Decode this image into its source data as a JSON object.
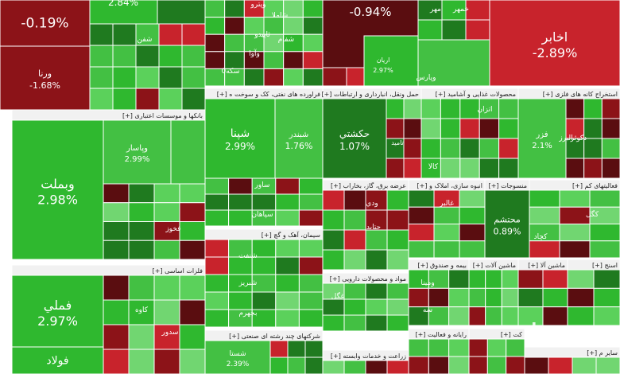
{
  "chart_data": {
    "type": "treemap",
    "colors": {
      "strong_green": "#2fb82f",
      "green": "#43c043",
      "light_green": "#5bd15b",
      "pale_green": "#71d671",
      "dark_green": "#1f7a1f",
      "red": "#c8232c",
      "dark_red": "#8c1318",
      "darker_red": "#5a0d10",
      "header": "#f1f1f1"
    },
    "sectors": [
      {
        "label": "[+] بانکها و موسسات اعتباری"
      },
      {
        "label": "[+] فلزات اساسی"
      },
      {
        "label": "[+] فراورده های نفتی، کک و سوخت ه"
      },
      {
        "label": "[+] حمل ونقل، انبارداری و ارتباطات"
      },
      {
        "label": "[+] محصولات غذایی و آشامید"
      },
      {
        "label": "[+] استخراج کانه های فلزی"
      },
      {
        "label": "[+] عرضه برق، گاز، بخاراب"
      },
      {
        "label": "[+] انبوه سازی، املاک و"
      },
      {
        "label": "[+] منسوجات"
      },
      {
        "label": "[+] فعالیتهای کم"
      },
      {
        "label": "[+] سیمان، آهک و گچ"
      },
      {
        "label": "[+] مواد و محصولات دارویی"
      },
      {
        "label": "[+] بیمه و صندوق"
      },
      {
        "label": "[+] ماشین آلات"
      },
      {
        "label": "[+] ماشین آلا"
      },
      {
        "label": "[+] اسنج"
      },
      {
        "label": "[+] شرکتهای چند رشته ای صنعتی"
      },
      {
        "label": "[+] رایانه و فعالیت"
      },
      {
        "label": "[+] زراعت و خدمات وابسته"
      },
      {
        "label": "[+] سایر م"
      },
      {
        "label": "[+] کت"
      }
    ],
    "tiles": [
      {
        "name": "",
        "change": "-0.19%",
        "color": "dark_red"
      },
      {
        "name": "",
        "change": "2.84%",
        "color": "strong_green"
      },
      {
        "name": "ورنا",
        "change": "-1.68%",
        "color": "dark_red"
      },
      {
        "name": "",
        "change": "-0.94%",
        "color": "darker_red"
      },
      {
        "name": "اخابر",
        "change": "-2.89%",
        "color": "red"
      },
      {
        "name": "وبملت",
        "change": "2.98%",
        "color": "strong_green"
      },
      {
        "name": "وپاسار",
        "change": "2.99%",
        "color": "green"
      },
      {
        "name": "فملي",
        "change": "2.97%",
        "color": "strong_green"
      },
      {
        "name": "فولاد",
        "change": "",
        "color": "strong_green"
      },
      {
        "name": "شپنا",
        "change": "2.99%",
        "color": "strong_green"
      },
      {
        "name": "شبندر",
        "change": "1.76%",
        "color": "green"
      },
      {
        "name": "حكشتي",
        "change": "1.07%",
        "color": "dark_green"
      },
      {
        "name": "محتشم",
        "change": "0.89%",
        "color": "dark_green"
      },
      {
        "name": "فزر",
        "change": "2.1%",
        "color": "green"
      },
      {
        "name": "شستا",
        "change": "2.39%",
        "color": "green"
      },
      {
        "name": "اريان",
        "change": "2.97%",
        "color": "green"
      }
    ],
    "small_labels": [
      "شفن",
      "وپترو",
      "شاملا",
      "ثاپيدو",
      "شفام",
      "وآوا",
      "سکه0",
      "مهر",
      "خمهر",
      "وپارس",
      "فخوز",
      "کاوه",
      "سدور",
      "ساور",
      "سپاهان",
      "شنفت",
      "شبريز",
      "بجهرم",
      "تاميد",
      "اتزان",
      "کالا",
      "دکوثر",
      "البرز",
      "ودي",
      "حتايد",
      "غالبر",
      "کگل",
      "کچاد",
      "غگل",
      "ومينا",
      "سه",
      "شلي"
    ],
    "watermark": "مرزا"
  }
}
